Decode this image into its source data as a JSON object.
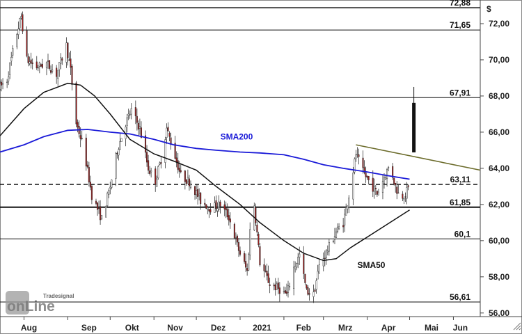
{
  "chart_data": {
    "type": "candlestick",
    "currency": "$",
    "ylim": [
      55.8,
      73.0
    ],
    "y_ticks": [
      {
        "value": 56,
        "label": "56,00"
      },
      {
        "value": 58,
        "label": "58,00"
      },
      {
        "value": 60,
        "label": "60,00"
      },
      {
        "value": 62,
        "label": "62,00"
      },
      {
        "value": 64,
        "label": "64,00"
      },
      {
        "value": 66,
        "label": "66,00"
      },
      {
        "value": 68,
        "label": "68,00"
      },
      {
        "value": 70,
        "label": "70,00"
      },
      {
        "value": 72,
        "label": "72,00"
      }
    ],
    "x_range": [
      "2020-07-15",
      "2021-06-20"
    ],
    "x_ticks": [
      {
        "date": "2020-08-01",
        "label": "Aug"
      },
      {
        "date": "2020-09-01",
        "label": "Sep"
      },
      {
        "date": "2020-10-01",
        "label": "Okt"
      },
      {
        "date": "2020-11-01",
        "label": "Nov"
      },
      {
        "date": "2020-12-01",
        "label": "Dez"
      },
      {
        "date": "2021-01-01",
        "label": "2021"
      },
      {
        "date": "2021-02-01",
        "label": "Feb"
      },
      {
        "date": "2021-03-01",
        "label": "Mrz"
      },
      {
        "date": "2021-04-01",
        "label": "Apr"
      },
      {
        "date": "2021-05-01",
        "label": "Mai"
      },
      {
        "date": "2021-06-01",
        "label": "Jun"
      }
    ],
    "levels": [
      {
        "value": 72.88,
        "label": "72,88",
        "style": "solid",
        "weight": 1.5
      },
      {
        "value": 71.65,
        "label": "71,65",
        "style": "solid",
        "weight": 1
      },
      {
        "value": 67.91,
        "label": "67,91",
        "style": "solid",
        "weight": 1
      },
      {
        "value": 63.11,
        "label": "63,11",
        "style": "dashed",
        "weight": 1.5
      },
      {
        "value": 61.85,
        "label": "61,85",
        "style": "solid",
        "weight": 2
      },
      {
        "value": 60.1,
        "label": "60,1",
        "style": "solid",
        "weight": 1
      },
      {
        "value": 56.61,
        "label": "56,61",
        "style": "solid",
        "weight": 1
      }
    ],
    "price_path": [
      [
        "2020-07-15",
        68.5
      ],
      [
        "2020-07-20",
        68.9
      ],
      [
        "2020-07-26",
        71.2
      ],
      [
        "2020-07-30",
        72.4
      ],
      [
        "2020-08-03",
        70.0
      ],
      [
        "2020-08-10",
        69.6
      ],
      [
        "2020-08-17",
        69.8
      ],
      [
        "2020-08-24",
        69.2
      ],
      [
        "2020-08-31",
        70.8
      ],
      [
        "2020-09-03",
        69.4
      ],
      [
        "2020-09-07",
        66.5
      ],
      [
        "2020-09-12",
        65.2
      ],
      [
        "2020-09-18",
        62.5
      ],
      [
        "2020-09-25",
        61.2
      ],
      [
        "2020-10-01",
        63.0
      ],
      [
        "2020-10-06",
        65.0
      ],
      [
        "2020-10-12",
        66.5
      ],
      [
        "2020-10-16",
        67.2
      ],
      [
        "2020-10-22",
        66.2
      ],
      [
        "2020-10-28",
        64.0
      ],
      [
        "2020-11-02",
        63.3
      ],
      [
        "2020-11-06",
        64.5
      ],
      [
        "2020-11-10",
        66.2
      ],
      [
        "2020-11-14",
        65.2
      ],
      [
        "2020-11-20",
        63.6
      ],
      [
        "2020-11-27",
        63.2
      ],
      [
        "2020-12-04",
        62.2
      ],
      [
        "2020-12-11",
        61.8
      ],
      [
        "2020-12-18",
        62.0
      ],
      [
        "2020-12-24",
        61.3
      ],
      [
        "2020-12-31",
        59.5
      ],
      [
        "2021-01-06",
        58.3
      ],
      [
        "2021-01-10",
        62.8
      ],
      [
        "2021-01-15",
        58.8
      ],
      [
        "2021-01-22",
        57.6
      ],
      [
        "2021-01-29",
        57.3
      ],
      [
        "2021-02-03",
        57.0
      ],
      [
        "2021-02-08",
        58.5
      ],
      [
        "2021-02-12",
        59.2
      ],
      [
        "2021-02-17",
        57.2
      ],
      [
        "2021-02-22",
        57.0
      ],
      [
        "2021-02-26",
        58.6
      ],
      [
        "2021-03-04",
        59.5
      ],
      [
        "2021-03-10",
        60.5
      ],
      [
        "2021-03-15",
        61.0
      ],
      [
        "2021-03-19",
        62.5
      ],
      [
        "2021-03-24",
        64.8
      ],
      [
        "2021-03-29",
        63.8
      ],
      [
        "2021-04-03",
        63.2
      ],
      [
        "2021-04-08",
        62.6
      ],
      [
        "2021-04-13",
        63.5
      ],
      [
        "2021-04-17",
        64.2
      ],
      [
        "2021-04-21",
        63.0
      ],
      [
        "2021-04-24",
        62.4
      ],
      [
        "2021-04-28",
        62.6
      ],
      [
        "2021-05-01",
        63.0
      ]
    ],
    "last_candle": {
      "date": "2021-05-04",
      "open": 64.9,
      "high": 68.5,
      "low": 64.9,
      "close": 67.6
    },
    "sma200": [
      [
        "2020-07-15",
        64.9
      ],
      [
        "2020-08-01",
        65.3
      ],
      [
        "2020-08-15",
        65.75
      ],
      [
        "2020-09-01",
        66.1
      ],
      [
        "2020-09-15",
        66.15
      ],
      [
        "2020-10-01",
        66.0
      ],
      [
        "2020-10-15",
        65.9
      ],
      [
        "2020-11-01",
        65.6
      ],
      [
        "2020-11-15",
        65.3
      ],
      [
        "2020-12-01",
        65.1
      ],
      [
        "2020-12-15",
        65.0
      ],
      [
        "2021-01-01",
        64.9
      ],
      [
        "2021-01-15",
        64.85
      ],
      [
        "2021-02-01",
        64.75
      ],
      [
        "2021-02-15",
        64.5
      ],
      [
        "2021-03-01",
        64.2
      ],
      [
        "2021-03-15",
        64.0
      ],
      [
        "2021-04-01",
        63.8
      ],
      [
        "2021-04-15",
        63.6
      ],
      [
        "2021-05-01",
        63.4
      ]
    ],
    "sma50": [
      [
        "2020-07-15",
        65.8
      ],
      [
        "2020-08-01",
        67.3
      ],
      [
        "2020-08-15",
        68.2
      ],
      [
        "2020-09-01",
        68.7
      ],
      [
        "2020-09-10",
        68.6
      ],
      [
        "2020-09-20",
        68.0
      ],
      [
        "2020-10-01",
        67.0
      ],
      [
        "2020-10-15",
        65.6
      ],
      [
        "2020-11-01",
        64.8
      ],
      [
        "2020-11-15",
        64.4
      ],
      [
        "2020-12-01",
        63.9
      ],
      [
        "2020-12-15",
        63.0
      ],
      [
        "2021-01-01",
        62.0
      ],
      [
        "2021-01-15",
        61.0
      ],
      [
        "2021-02-01",
        60.0
      ],
      [
        "2021-02-15",
        59.3
      ],
      [
        "2021-03-01",
        58.9
      ],
      [
        "2021-03-10",
        59.0
      ],
      [
        "2021-03-20",
        59.6
      ],
      [
        "2021-04-01",
        60.2
      ],
      [
        "2021-04-15",
        60.9
      ],
      [
        "2021-05-01",
        61.7
      ]
    ],
    "trendline": [
      [
        "2021-03-24",
        65.3
      ],
      [
        "2021-06-20",
        63.9
      ]
    ],
    "annotations": [
      {
        "text": "SMA200",
        "date": "2020-12-18",
        "value": 65.6,
        "color": "#1a1ad8"
      },
      {
        "text": "SMA50",
        "date": "2021-03-25",
        "value": 58.5,
        "color": "#111111"
      }
    ],
    "colors": {
      "sma200": "#1a1ad8",
      "sma50": "#111111",
      "trendline": "#6b6b2a",
      "candle_up": "#ffffff",
      "candle_down": "#9e1a1a",
      "candle_outline": "#333333"
    }
  },
  "watermark": {
    "brand_small": "Tradesignal",
    "brand_large": "onLine"
  }
}
